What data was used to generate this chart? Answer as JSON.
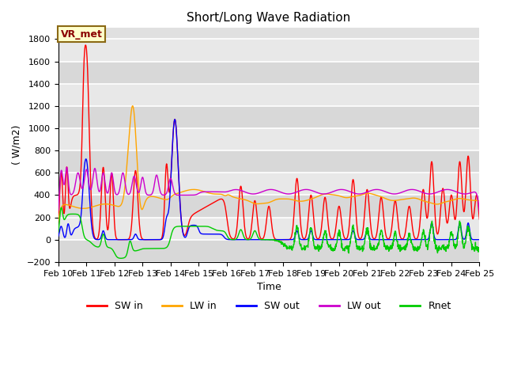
{
  "title": "Short/Long Wave Radiation",
  "ylabel": "( W/m2)",
  "xlabel": "Time",
  "ylim": [
    -200,
    1900
  ],
  "yticks": [
    -200,
    0,
    200,
    400,
    600,
    800,
    1000,
    1200,
    1400,
    1600,
    1800
  ],
  "background_color": "#e0e0e0",
  "label_box_text": "VR_met",
  "colors": {
    "SW_in": "#ff0000",
    "LW_in": "#ffa500",
    "SW_out": "#0000ff",
    "LW_out": "#cc00cc",
    "Rnet": "#00cc00"
  },
  "legend_labels": [
    "SW in",
    "LW in",
    "SW out",
    "LW out",
    "Rnet"
  ]
}
